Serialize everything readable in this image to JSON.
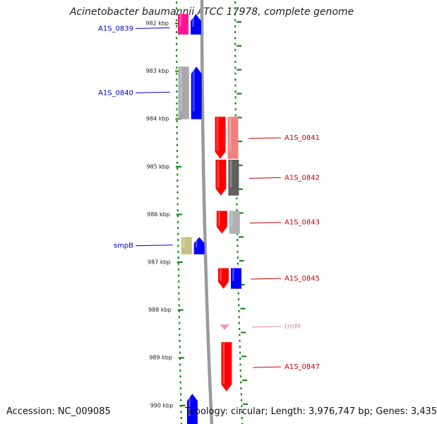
{
  "title": "Acinetobacter baumannii ATCC 17978, complete genome",
  "footer": {
    "accession": "Accession: NC_009085",
    "summary": "Topology: circular; Length: 3,976,747 bp; Genes: 3,435"
  },
  "axis": {
    "unit": "kbp",
    "view_range_kbp": [
      981.85,
      990.45
    ],
    "ticks": [
      "982 kbp",
      "983 kbp",
      "984 kbp",
      "985 kbp",
      "986 kbp",
      "987 kbp",
      "988 kbp",
      "989 kbp",
      "990 kbp"
    ],
    "tick_values_kbp": [
      982,
      983,
      984,
      985,
      986,
      987,
      988,
      989,
      990
    ]
  },
  "colors": {
    "label_left": "#0000c8",
    "label_right": "#c80000",
    "label_trna": "#f080b0",
    "tick": "#1a8a1a",
    "backbone": "#9a9a9a"
  },
  "genes": [
    {
      "label": "A1S_0839",
      "strand": "-",
      "start_kbp": 981.85,
      "end_kbp": 982.28,
      "track_colors": [
        "#ff1493",
        "#0000ff"
      ],
      "label_color": "#0000c8"
    },
    {
      "label": "A1S_0840",
      "strand": "-",
      "start_kbp": 982.95,
      "end_kbp": 984.05,
      "track_colors": [
        "#a8a8a8",
        "#0000ff"
      ],
      "label_color": "#0000c8"
    },
    {
      "label": "A1S_0841",
      "strand": "+",
      "start_kbp": 984.0,
      "end_kbp": 984.88,
      "track_colors": [
        "#ff0000",
        "#f08080"
      ],
      "label_color": "#c80000"
    },
    {
      "label": "A1S_0842",
      "strand": "+",
      "start_kbp": 984.9,
      "end_kbp": 985.65,
      "track_colors": [
        "#ff0000",
        "#606060"
      ],
      "label_color": "#c80000"
    },
    {
      "label": "A1S_0843",
      "strand": "+",
      "start_kbp": 985.97,
      "end_kbp": 986.45,
      "track_colors": [
        "#ff0000",
        "#b0b0b0"
      ],
      "label_color": "#c80000"
    },
    {
      "label": "smpB",
      "strand": "-",
      "start_kbp": 986.52,
      "end_kbp": 986.88,
      "track_colors": [
        "#c8c080",
        "#0000ff"
      ],
      "label_color": "#0000c8"
    },
    {
      "label": "A1S_0845",
      "strand": "+",
      "start_kbp": 987.17,
      "end_kbp": 987.6,
      "track_colors": [
        "#ff0000",
        "#0000ff"
      ],
      "label_color": "#c80000"
    },
    {
      "label": "trnM",
      "strand": "+",
      "start_kbp": 988.35,
      "end_kbp": 988.43,
      "track_colors": [
        "#f090c0"
      ],
      "label_color": "#f080b0"
    },
    {
      "label": "A1S_0847",
      "strand": "+",
      "start_kbp": 988.72,
      "end_kbp": 989.75,
      "track_colors": [
        "#ff0000"
      ],
      "label_color": "#c80000"
    },
    {
      "label": "",
      "strand": "-",
      "start_kbp": 989.8,
      "end_kbp": 990.45,
      "track_colors": [
        "#0000ff"
      ],
      "label_color": "#0000c8"
    }
  ]
}
